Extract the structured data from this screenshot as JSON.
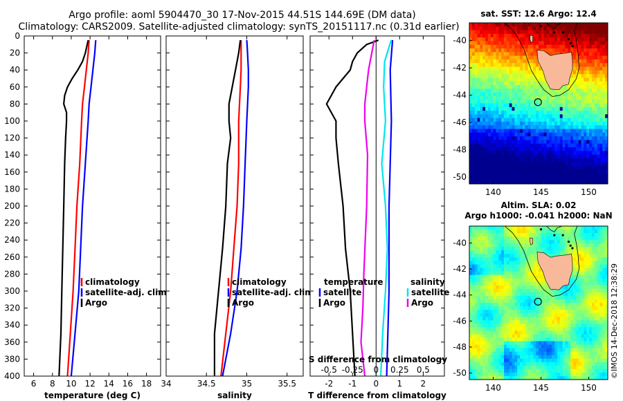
{
  "title": {
    "line1": "Argo profile: aoml 5904470_30 17-Nov-2015 44.51S 144.69E (DM data)",
    "line2": "Climatology: CARS2009. Satellite-adjusted climatology: synTS_20151117.nc (0.31d earlier)"
  },
  "watermark": "©IMOS 14-Dec-2018 12:38:29",
  "colors": {
    "clim": "#ff0000",
    "sat": "#0000ff",
    "argo": "#000000",
    "sal_sat": "#00e5ee",
    "sal_argo": "#ee00ee",
    "land": "#f7b99a"
  },
  "chart_data": [
    {
      "id": "temperature",
      "type": "line",
      "xlabel": "temperature (deg C)",
      "xlim": [
        5,
        19.5
      ],
      "ylim": [
        400,
        0
      ],
      "xticks": [
        6,
        8,
        10,
        12,
        14,
        16,
        18
      ],
      "yticks": [
        0,
        20,
        40,
        60,
        80,
        100,
        120,
        140,
        160,
        180,
        200,
        220,
        240,
        260,
        280,
        300,
        320,
        340,
        360,
        380,
        400
      ],
      "legend": [
        "climatology",
        "satellite-adj. clim.",
        "Argo"
      ],
      "series": [
        {
          "name": "climatology",
          "color": "#ff0000",
          "depth": [
            5,
            20,
            40,
            60,
            80,
            100,
            150,
            200,
            250,
            300,
            350,
            400
          ],
          "values": [
            11.9,
            11.8,
            11.6,
            11.4,
            11.2,
            11.1,
            10.9,
            10.6,
            10.4,
            10.2,
            9.9,
            9.6
          ]
        },
        {
          "name": "satellite-adj. clim.",
          "color": "#0000ff",
          "depth": [
            5,
            20,
            40,
            60,
            80,
            100,
            150,
            200,
            250,
            300,
            350,
            400
          ],
          "values": [
            12.6,
            12.5,
            12.3,
            12.1,
            11.9,
            11.8,
            11.5,
            11.2,
            11.0,
            10.8,
            10.4,
            10.0
          ]
        },
        {
          "name": "Argo",
          "color": "#000000",
          "depth": [
            5,
            20,
            30,
            40,
            50,
            60,
            70,
            80,
            90,
            100,
            120,
            150,
            200,
            250,
            300,
            350,
            400
          ],
          "values": [
            11.8,
            11.5,
            11.2,
            10.7,
            10.1,
            9.6,
            9.3,
            9.2,
            9.5,
            9.5,
            9.4,
            9.3,
            9.2,
            9.1,
            9.0,
            8.9,
            8.7
          ]
        }
      ]
    },
    {
      "id": "salinity",
      "type": "line",
      "xlabel": "salinity",
      "xlim": [
        34.0,
        35.7
      ],
      "ylim": [
        400,
        0
      ],
      "xticks": [
        34,
        34.5,
        35,
        35.5
      ],
      "xticklabels": [
        "34",
        "34.5",
        "35",
        "35.5"
      ],
      "legend": [
        "climatology",
        "satellite-adj. clim.",
        "Argo"
      ],
      "series": [
        {
          "name": "climatology",
          "color": "#ff0000",
          "depth": [
            5,
            20,
            40,
            60,
            100,
            150,
            200,
            250,
            300,
            350,
            400
          ],
          "values": [
            34.93,
            34.93,
            34.93,
            34.92,
            34.9,
            34.9,
            34.88,
            34.84,
            34.8,
            34.74,
            34.68
          ]
        },
        {
          "name": "satellite-adj. clim.",
          "color": "#0000ff",
          "depth": [
            5,
            20,
            40,
            60,
            100,
            150,
            200,
            250,
            300,
            350,
            400
          ],
          "values": [
            35.0,
            35.01,
            35.02,
            35.02,
            35.0,
            34.98,
            34.96,
            34.93,
            34.88,
            34.8,
            34.7
          ]
        },
        {
          "name": "Argo",
          "color": "#000000",
          "depth": [
            5,
            20,
            40,
            60,
            80,
            100,
            120,
            150,
            200,
            250,
            300,
            350,
            400
          ],
          "values": [
            34.92,
            34.9,
            34.86,
            34.82,
            34.78,
            34.78,
            34.8,
            34.76,
            34.74,
            34.7,
            34.65,
            34.6,
            34.6
          ]
        }
      ]
    },
    {
      "id": "difference",
      "type": "line",
      "xlabel": "T difference from climatology",
      "xlim": [
        -2.8,
        2.9
      ],
      "ylim": [
        400,
        0
      ],
      "xticks": [
        -2,
        -1,
        0,
        1,
        2
      ],
      "toplabel": "S difference from climatology",
      "sxticks": [
        -0.5,
        -0.25,
        0,
        0.25,
        0.5
      ],
      "sxticklabels": [
        "-0.5",
        "-0.25",
        "0",
        "0.25",
        "0.5"
      ],
      "legend_temp_title": "temperature",
      "legend_sal_title": "salinity",
      "legend_temp": [
        "satellite",
        "Argo"
      ],
      "legend_sal": [
        "satellite",
        "Argo"
      ],
      "series": [
        {
          "name": "T satellite",
          "color": "#0000ff",
          "depth": [
            5,
            40,
            100,
            150,
            200,
            300,
            400
          ],
          "values": [
            0.7,
            0.6,
            0.65,
            0.6,
            0.55,
            0.55,
            0.45
          ]
        },
        {
          "name": "T Argo",
          "color": "#000000",
          "depth": [
            5,
            10,
            20,
            30,
            40,
            50,
            60,
            70,
            80,
            100,
            120,
            150,
            200,
            250,
            300,
            350,
            400
          ],
          "values": [
            0.1,
            -0.4,
            -0.8,
            -1.0,
            -1.1,
            -1.4,
            -1.7,
            -1.9,
            -2.1,
            -1.7,
            -1.7,
            -1.6,
            -1.4,
            -1.3,
            -1.1,
            -1.0,
            -0.9
          ]
        },
        {
          "name": "S satellite",
          "color": "#00e5ee",
          "depth": [
            5,
            30,
            60,
            100,
            150,
            200,
            250,
            300,
            350,
            400
          ],
          "values": [
            0.16,
            0.09,
            0.08,
            0.1,
            0.06,
            0.1,
            0.12,
            0.1,
            0.07,
            0.05
          ]
        },
        {
          "name": "S Argo",
          "color": "#ee00ee",
          "depth": [
            5,
            40,
            60,
            80,
            100,
            140,
            200,
            280,
            320,
            360,
            400
          ],
          "values": [
            -0.02,
            -0.08,
            -0.1,
            -0.12,
            -0.12,
            -0.09,
            -0.1,
            -0.13,
            -0.14,
            -0.16,
            -0.12
          ]
        }
      ]
    },
    {
      "id": "sst_map",
      "type": "heatmap",
      "title": "sat. SST: 12.6 Argo: 12.4",
      "xlim": [
        137.5,
        152
      ],
      "ylim": [
        -50.5,
        -38.7
      ],
      "xticks": [
        140,
        145,
        150
      ],
      "yticks": [
        -40,
        -42,
        -44,
        -46,
        -48,
        -50
      ],
      "argo_location": [
        144.69,
        -44.51
      ]
    },
    {
      "id": "sla_map",
      "type": "heatmap",
      "title": "Altim. SLA: 0.02",
      "subtitle": "Argo h1000: -0.041 h2000: NaN",
      "xlim": [
        137.5,
        152
      ],
      "ylim": [
        -50.5,
        -38.7
      ],
      "xticks": [
        140,
        145,
        150
      ],
      "yticks": [
        -40,
        -42,
        -44,
        -46,
        -48,
        -50
      ],
      "argo_location": [
        144.69,
        -44.51
      ]
    }
  ]
}
